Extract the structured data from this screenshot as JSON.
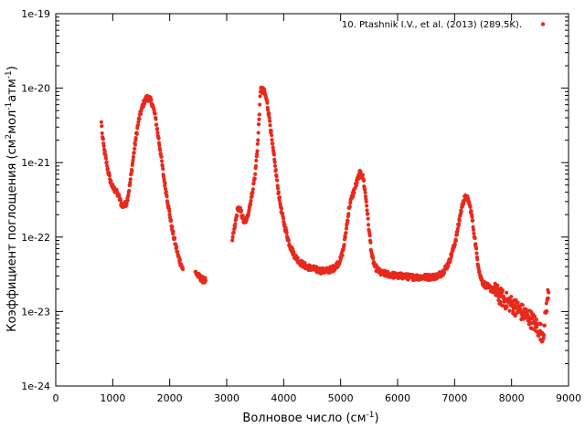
{
  "chart_data": {
    "type": "scatter",
    "title": "",
    "xlabel": "Волновое число (см",
    "xlabel_sup": "-1",
    "xlabel_end": ")",
    "ylabel": {
      "a": "Коэффициент поглощения (см",
      "b": "2",
      "c": "мол",
      "d": "-1",
      "e": "атм",
      "f": "-1",
      "g": ")"
    },
    "xlim": [
      0,
      9000
    ],
    "ylim": [
      1e-24,
      1e-19
    ],
    "yscale": "log",
    "grid": false,
    "legend_position": "top-right",
    "x_ticks": [
      {
        "value": 0,
        "label": "0"
      },
      {
        "value": 1000,
        "label": "1000"
      },
      {
        "value": 2000,
        "label": "2000"
      },
      {
        "value": 3000,
        "label": "3000"
      },
      {
        "value": 4000,
        "label": "4000"
      },
      {
        "value": 5000,
        "label": "5000"
      },
      {
        "value": 6000,
        "label": "6000"
      },
      {
        "value": 7000,
        "label": "7000"
      },
      {
        "value": 8000,
        "label": "8000"
      },
      {
        "value": 9000,
        "label": "9000"
      }
    ],
    "y_ticks": [
      {
        "value": 1e-24,
        "label": "1e-24"
      },
      {
        "value": 1e-23,
        "label": "1e-23"
      },
      {
        "value": 1e-22,
        "label": "1e-22"
      },
      {
        "value": 1e-21,
        "label": "1e-21"
      },
      {
        "value": 1e-20,
        "label": "1e-20"
      },
      {
        "value": 1e-19,
        "label": "1e-19"
      }
    ],
    "series": [
      {
        "name": "10. Ptashnik I.V., et al. (2013) (289.5K).",
        "color": "#e8291c",
        "segments": [
          [
            [
              800,
              3.5e-21
            ],
            [
              820,
              2.2e-21
            ],
            [
              850,
              1.5e-21
            ],
            [
              900,
              9e-22
            ],
            [
              950,
              6e-22
            ],
            [
              1000,
              4.6e-22
            ],
            [
              1050,
              4.2e-22
            ],
            [
              1100,
              3.6e-22
            ],
            [
              1150,
              2.8e-22
            ],
            [
              1200,
              2.6e-22
            ],
            [
              1250,
              3e-22
            ],
            [
              1300,
              5e-22
            ],
            [
              1350,
              1e-21
            ],
            [
              1400,
              2e-21
            ],
            [
              1450,
              3.5e-21
            ],
            [
              1500,
              5e-21
            ],
            [
              1550,
              6.5e-21
            ],
            [
              1600,
              7.5e-21
            ],
            [
              1650,
              7.2e-21
            ],
            [
              1700,
              6e-21
            ],
            [
              1750,
              4e-21
            ],
            [
              1800,
              2.2e-21
            ],
            [
              1850,
              1.2e-21
            ],
            [
              1900,
              6e-22
            ],
            [
              1950,
              3.5e-22
            ],
            [
              2000,
              2e-22
            ],
            [
              2050,
              1.2e-22
            ],
            [
              2100,
              8e-23
            ],
            [
              2150,
              5.5e-23
            ],
            [
              2200,
              4.3e-23
            ],
            [
              2230,
              3.7e-23
            ]
          ],
          [
            [
              2450,
              3.4e-23
            ],
            [
              2500,
              3e-23
            ],
            [
              2550,
              2.8e-23
            ],
            [
              2600,
              2.6e-23
            ],
            [
              2630,
              2.6e-23
            ]
          ],
          [
            [
              3100,
              9e-23
            ],
            [
              3150,
              1.5e-22
            ],
            [
              3200,
              2.5e-22
            ],
            [
              3250,
              2.2e-22
            ],
            [
              3300,
              1.6e-22
            ],
            [
              3350,
              1.7e-22
            ],
            [
              3400,
              2.5e-22
            ],
            [
              3450,
              4e-22
            ],
            [
              3500,
              7e-22
            ],
            [
              3550,
              2e-21
            ],
            [
              3580,
              6e-21
            ],
            [
              3600,
              1e-20
            ],
            [
              3620,
              9e-21
            ],
            [
              3650,
              9.5e-21
            ],
            [
              3700,
              7e-21
            ],
            [
              3750,
              4e-21
            ],
            [
              3800,
              1.8e-21
            ],
            [
              3850,
              9e-22
            ],
            [
              3900,
              4.5e-22
            ],
            [
              3950,
              2.5e-22
            ],
            [
              4000,
              1.6e-22
            ],
            [
              4100,
              8e-23
            ],
            [
              4200,
              5.5e-23
            ],
            [
              4300,
              4.5e-23
            ],
            [
              4400,
              4e-23
            ],
            [
              4500,
              3.8e-23
            ],
            [
              4600,
              3.6e-23
            ],
            [
              4700,
              3.5e-23
            ],
            [
              4800,
              3.6e-23
            ],
            [
              4900,
              3.9e-23
            ],
            [
              5000,
              5e-23
            ],
            [
              5050,
              7e-23
            ],
            [
              5100,
              1.3e-22
            ],
            [
              5150,
              2.5e-22
            ],
            [
              5200,
              3.5e-22
            ],
            [
              5250,
              4.5e-22
            ],
            [
              5300,
              6e-22
            ],
            [
              5350,
              7.5e-22
            ],
            [
              5400,
              6e-22
            ],
            [
              5450,
              3e-22
            ],
            [
              5500,
              1.2e-22
            ],
            [
              5550,
              5.5e-23
            ],
            [
              5600,
              4e-23
            ],
            [
              5700,
              3.3e-23
            ],
            [
              5800,
              3.2e-23
            ],
            [
              5900,
              3.1e-23
            ],
            [
              6000,
              3e-23
            ],
            [
              6100,
              3e-23
            ],
            [
              6200,
              2.9e-23
            ],
            [
              6300,
              2.9e-23
            ],
            [
              6400,
              2.9e-23
            ],
            [
              6500,
              2.9e-23
            ],
            [
              6600,
              2.9e-23
            ],
            [
              6700,
              3e-23
            ],
            [
              6800,
              3.4e-23
            ],
            [
              6900,
              4.5e-23
            ],
            [
              7000,
              8e-23
            ],
            [
              7050,
              1.2e-22
            ],
            [
              7100,
              2e-22
            ],
            [
              7150,
              3e-22
            ],
            [
              7200,
              3.5e-22
            ],
            [
              7250,
              3e-22
            ],
            [
              7300,
              2e-22
            ],
            [
              7350,
              1e-22
            ],
            [
              7400,
              5e-23
            ],
            [
              7450,
              3e-23
            ],
            [
              7500,
              2.4e-23
            ],
            [
              7600,
              2.1e-23
            ],
            [
              7700,
              1.9e-23
            ],
            [
              7800,
              1.6e-23
            ],
            [
              7900,
              1.4e-23
            ],
            [
              8000,
              1.25e-23
            ],
            [
              8100,
              1.1e-23
            ],
            [
              8200,
              9.5e-24
            ],
            [
              8300,
              8.5e-24
            ],
            [
              8400,
              7e-24
            ],
            [
              8500,
              5.5e-24
            ],
            [
              8550,
              5e-24
            ],
            [
              8580,
              6.5e-24
            ],
            [
              8600,
              1e-23
            ],
            [
              8630,
              1.5e-23
            ],
            [
              8650,
              1.8e-23
            ]
          ]
        ]
      }
    ]
  }
}
